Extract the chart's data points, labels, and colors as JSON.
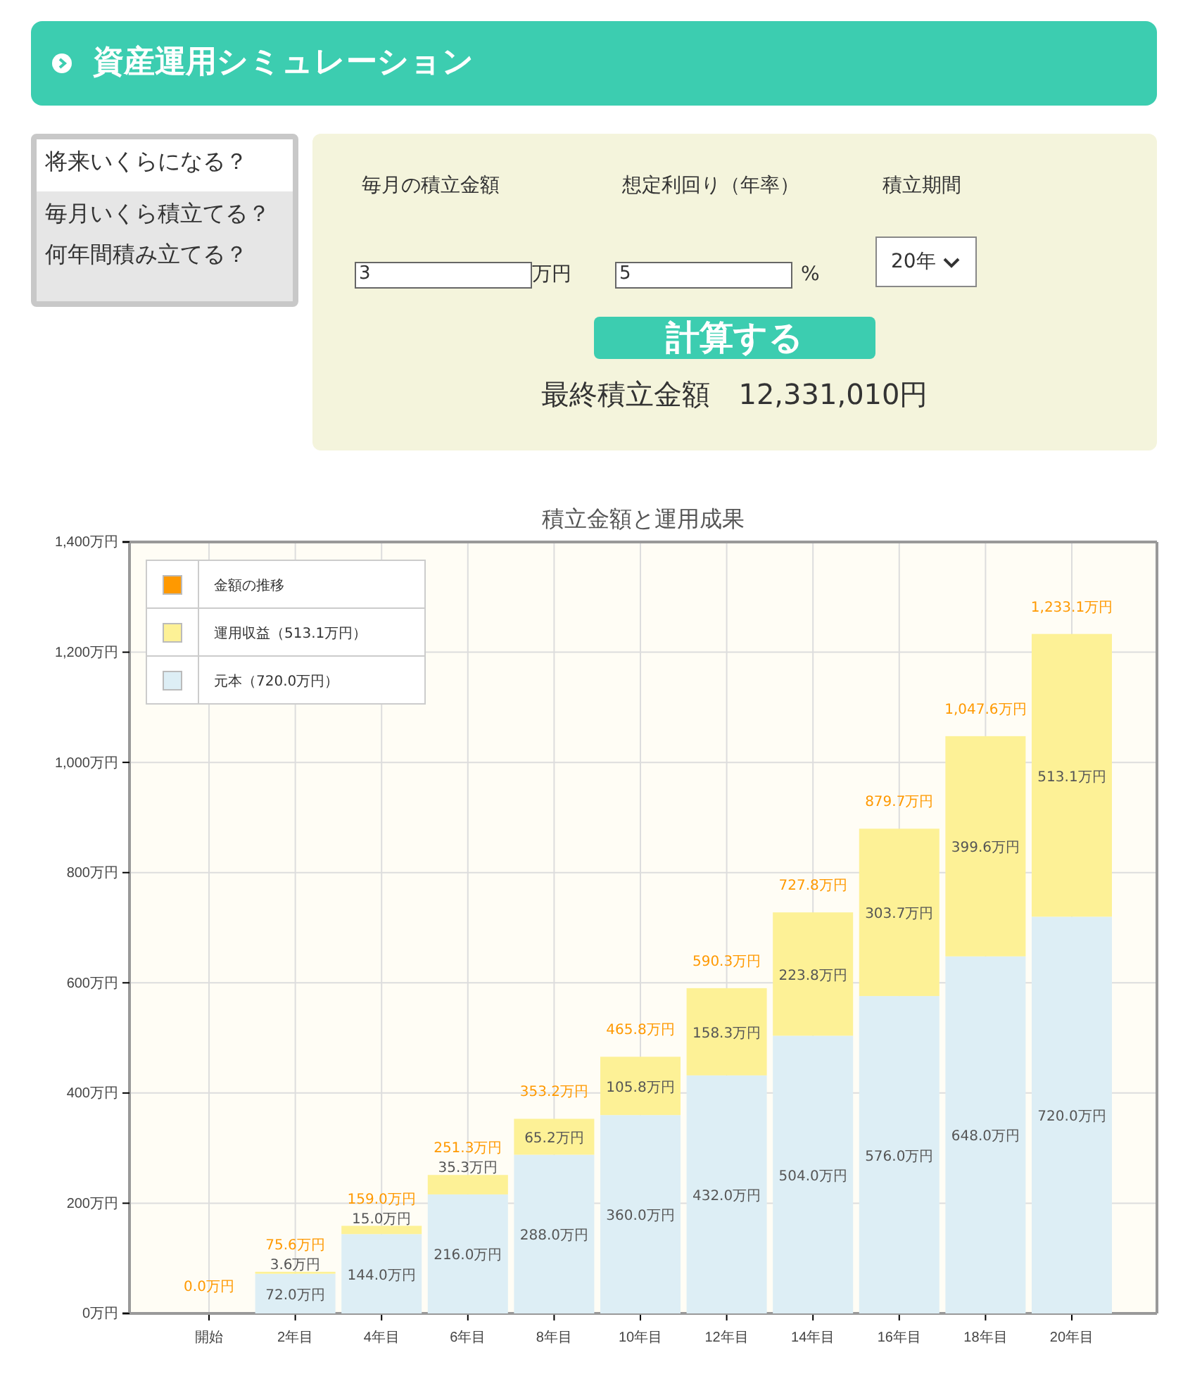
{
  "chart_data": [
    {
      "type": "other",
      "title": "資産運用シミュレーション",
      "annotations": [
        "将来いくらになる？",
        "毎月いくら積立てる？",
        "何年間積み立てる？",
        "毎月の積立金額",
        "想定利回り（年率）",
        "積立期間",
        "3",
        "万円",
        "5",
        "%",
        "20年",
        "計算する",
        "最終積立金額　12,331,010円"
      ]
    },
    {
      "type": "bar",
      "title": "積立金額と運用成果",
      "stacked": true,
      "grid": true,
      "legend": "top left",
      "categories": [
        "開始",
        "2年目",
        "4年目",
        "6年目",
        "8年目",
        "10年目",
        "12年目",
        "14年目",
        "16年目",
        "18年目",
        "20年目"
      ],
      "ylim": [
        0,
        1400
      ],
      "annotations": [
        "金額の推移"
      ],
      "totals": [
        "0.0万円",
        "75.6万円",
        "159.0万円",
        "251.3万円",
        "353.2万円",
        "465.8万円",
        "590.3万円",
        "727.8万円",
        "879.7万円",
        "1,047.6万円",
        "1,233.1万円"
      ],
      "yticks": [
        {
          "value": 0,
          "label": "0万円"
        },
        {
          "value": 200,
          "label": "200万円"
        },
        {
          "value": 400,
          "label": "400万円"
        },
        {
          "value": 600,
          "label": "600万円"
        },
        {
          "value": 800,
          "label": "800万円"
        },
        {
          "value": 1000,
          "label": "1,000万円"
        },
        {
          "value": 1200,
          "label": "1,200万円"
        },
        {
          "value": 1400,
          "label": "1,400万円"
        }
      ],
      "series": [
        {
          "name": "運用収益（513.1万円）",
          "color": "#fdf196",
          "values": [
            0,
            3.6,
            15.0,
            35.3,
            65.2,
            105.8,
            158.3,
            223.8,
            303.7,
            399.6,
            513.1
          ],
          "value_labels": [
            null,
            "3.6万円",
            "15.0万円",
            "35.3万円",
            "65.2万円",
            "105.8万円",
            "158.3万円",
            "223.8万円",
            "303.7万円",
            "399.6万円",
            "513.1万円"
          ]
        },
        {
          "name": "元本（720.0万円）",
          "color": "#ddeef5",
          "values": [
            0,
            72.0,
            144.0,
            216.0,
            288.0,
            360.0,
            432.0,
            504.0,
            576.0,
            648.0,
            720.0
          ],
          "value_labels": [
            null,
            "72.0万円",
            "144.0万円",
            "216.0万円",
            "288.0万円",
            "360.0万円",
            "432.0万円",
            "504.0万円",
            "576.0万円",
            "648.0万円",
            "720.0万円"
          ]
        }
      ]
    }
  ]
}
